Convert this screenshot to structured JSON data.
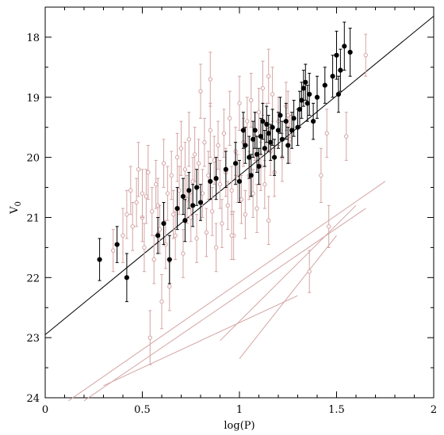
{
  "chart_data": {
    "type": "scatter",
    "xlabel": "log(P)",
    "ylabel": "V",
    "ylabel_subscript": "0",
    "xlim": [
      0,
      2
    ],
    "ylim": [
      24,
      17.5
    ],
    "y_inverted": true,
    "grid": false,
    "x_ticks": [
      "0",
      "0.5",
      "1",
      "1.5",
      "2"
    ],
    "y_ticks": [
      "18",
      "19",
      "20",
      "21",
      "22",
      "23",
      "24"
    ],
    "colors": {
      "filled": "#000000",
      "open": "#d4a5a5",
      "fit_line": "#000000",
      "aux_lines": "#d4a5a5"
    },
    "fit_line": {
      "x": [
        0,
        2
      ],
      "y": [
        22.95,
        17.65
      ]
    },
    "aux_lines": [
      {
        "x": [
          0.12,
          1.75
        ],
        "y": [
          24.05,
          20.4
        ]
      },
      {
        "x": [
          0.2,
          1.65
        ],
        "y": [
          24.05,
          20.85
        ]
      },
      {
        "x": [
          0.3,
          1.3
        ],
        "y": [
          23.8,
          22.3
        ]
      },
      {
        "x": [
          0.9,
          1.6
        ],
        "y": [
          23.05,
          20.8
        ]
      },
      {
        "x": [
          1.0,
          1.5
        ],
        "y": [
          23.35,
          21.3
        ]
      }
    ],
    "series": [
      {
        "marker": "filled",
        "points": [
          [
            0.28,
            21.7,
            0.35
          ],
          [
            0.37,
            21.45,
            0.3
          ],
          [
            0.42,
            22.0,
            0.4
          ],
          [
            0.58,
            21.3,
            0.3
          ],
          [
            0.61,
            21.1,
            0.35
          ],
          [
            0.64,
            21.7,
            0.4
          ],
          [
            0.68,
            20.85,
            0.35
          ],
          [
            0.71,
            20.65,
            0.3
          ],
          [
            0.72,
            21.05,
            0.35
          ],
          [
            0.74,
            20.55,
            0.3
          ],
          [
            0.76,
            20.8,
            0.35
          ],
          [
            0.78,
            20.5,
            0.3
          ],
          [
            0.8,
            20.75,
            0.3
          ],
          [
            0.85,
            20.4,
            0.3
          ],
          [
            0.88,
            20.35,
            0.35
          ],
          [
            0.93,
            20.2,
            0.3
          ],
          [
            0.98,
            20.1,
            0.35
          ],
          [
            1.0,
            20.4,
            0.35
          ],
          [
            1.02,
            19.55,
            0.3
          ],
          [
            1.03,
            19.8,
            0.3
          ],
          [
            1.05,
            20.0,
            0.35
          ],
          [
            1.06,
            20.3,
            0.35
          ],
          [
            1.07,
            19.7,
            0.3
          ],
          [
            1.08,
            19.55,
            0.3
          ],
          [
            1.09,
            19.95,
            0.3
          ],
          [
            1.1,
            20.15,
            0.3
          ],
          [
            1.11,
            19.65,
            0.3
          ],
          [
            1.12,
            19.4,
            0.3
          ],
          [
            1.13,
            19.85,
            0.3
          ],
          [
            1.14,
            19.45,
            0.3
          ],
          [
            1.15,
            19.6,
            0.3
          ],
          [
            1.16,
            19.75,
            0.3
          ],
          [
            1.17,
            19.5,
            0.3
          ],
          [
            1.18,
            20.0,
            0.3
          ],
          [
            1.2,
            19.55,
            0.3
          ],
          [
            1.21,
            19.3,
            0.3
          ],
          [
            1.22,
            19.7,
            0.3
          ],
          [
            1.24,
            19.4,
            0.3
          ],
          [
            1.25,
            19.8,
            0.3
          ],
          [
            1.27,
            19.55,
            0.3
          ],
          [
            1.28,
            19.35,
            0.3
          ],
          [
            1.3,
            19.5,
            0.3
          ],
          [
            1.31,
            19.2,
            0.3
          ],
          [
            1.32,
            19.05,
            0.3
          ],
          [
            1.33,
            18.85,
            0.3
          ],
          [
            1.34,
            18.75,
            0.3
          ],
          [
            1.35,
            19.1,
            0.3
          ],
          [
            1.36,
            18.95,
            0.35
          ],
          [
            1.38,
            19.4,
            0.3
          ],
          [
            1.4,
            19.0,
            0.35
          ],
          [
            1.44,
            18.8,
            0.3
          ],
          [
            1.48,
            18.65,
            0.35
          ],
          [
            1.5,
            18.3,
            0.4
          ],
          [
            1.51,
            18.95,
            0.3
          ],
          [
            1.52,
            18.55,
            0.35
          ],
          [
            1.54,
            18.15,
            0.4
          ],
          [
            1.57,
            18.25,
            0.4
          ]
        ]
      },
      {
        "marker": "open",
        "points": [
          [
            0.35,
            21.55,
            0.35
          ],
          [
            0.4,
            21.3,
            0.45
          ],
          [
            0.42,
            20.95,
            0.4
          ],
          [
            0.44,
            20.55,
            0.4
          ],
          [
            0.45,
            21.15,
            0.4
          ],
          [
            0.47,
            20.75,
            0.4
          ],
          [
            0.48,
            20.2,
            0.45
          ],
          [
            0.5,
            21.0,
            0.4
          ],
          [
            0.51,
            21.5,
            0.4
          ],
          [
            0.52,
            20.65,
            0.45
          ],
          [
            0.53,
            20.25,
            0.45
          ],
          [
            0.54,
            23.0,
            0.45
          ],
          [
            0.55,
            20.9,
            0.4
          ],
          [
            0.56,
            21.7,
            0.4
          ],
          [
            0.57,
            20.45,
            0.4
          ],
          [
            0.58,
            20.8,
            0.45
          ],
          [
            0.59,
            21.2,
            0.4
          ],
          [
            0.6,
            22.4,
            0.45
          ],
          [
            0.61,
            20.1,
            0.4
          ],
          [
            0.62,
            21.45,
            0.4
          ],
          [
            0.63,
            20.6,
            0.45
          ],
          [
            0.64,
            22.15,
            0.4
          ],
          [
            0.65,
            20.3,
            0.4
          ],
          [
            0.66,
            20.95,
            0.4
          ],
          [
            0.67,
            21.3,
            0.4
          ],
          [
            0.68,
            20.0,
            0.4
          ],
          [
            0.69,
            20.55,
            0.4
          ],
          [
            0.7,
            19.85,
            0.45
          ],
          [
            0.71,
            21.6,
            0.4
          ],
          [
            0.72,
            20.2,
            0.45
          ],
          [
            0.73,
            20.7,
            0.4
          ],
          [
            0.74,
            19.7,
            0.45
          ],
          [
            0.75,
            21.0,
            0.4
          ],
          [
            0.76,
            20.4,
            0.4
          ],
          [
            0.77,
            19.95,
            0.45
          ],
          [
            0.78,
            21.35,
            0.4
          ],
          [
            0.79,
            20.1,
            0.4
          ],
          [
            0.8,
            18.9,
            0.45
          ],
          [
            0.81,
            20.6,
            0.4
          ],
          [
            0.82,
            19.75,
            0.4
          ],
          [
            0.83,
            21.25,
            0.4
          ],
          [
            0.84,
            20.3,
            0.4
          ],
          [
            0.85,
            19.55,
            0.45
          ],
          [
            0.86,
            20.9,
            0.4
          ],
          [
            0.87,
            20.05,
            0.4
          ],
          [
            0.88,
            21.5,
            0.4
          ],
          [
            0.89,
            19.8,
            0.4
          ],
          [
            0.9,
            20.45,
            0.4
          ],
          [
            0.91,
            21.1,
            0.4
          ],
          [
            0.92,
            19.6,
            0.4
          ],
          [
            0.93,
            20.25,
            0.4
          ],
          [
            0.94,
            20.8,
            0.4
          ],
          [
            0.95,
            19.35,
            0.45
          ],
          [
            0.96,
            20.55,
            0.4
          ],
          [
            0.97,
            21.3,
            0.4
          ],
          [
            0.98,
            19.9,
            0.4
          ],
          [
            0.99,
            20.35,
            0.4
          ],
          [
            1.0,
            19.1,
            0.45
          ],
          [
            1.01,
            20.7,
            0.4
          ],
          [
            1.02,
            19.75,
            0.4
          ],
          [
            1.03,
            20.95,
            0.4
          ],
          [
            1.04,
            19.4,
            0.4
          ],
          [
            1.05,
            20.3,
            0.4
          ],
          [
            1.06,
            19.05,
            0.45
          ],
          [
            1.07,
            20.6,
            0.4
          ],
          [
            1.08,
            19.65,
            0.4
          ],
          [
            1.09,
            20.85,
            0.4
          ],
          [
            1.1,
            19.25,
            0.4
          ],
          [
            1.11,
            20.15,
            0.4
          ],
          [
            1.12,
            18.85,
            0.45
          ],
          [
            1.13,
            20.45,
            0.4
          ],
          [
            1.14,
            19.5,
            0.4
          ],
          [
            1.15,
            21.05,
            0.4
          ],
          [
            1.16,
            19.9,
            0.4
          ],
          [
            1.17,
            18.95,
            0.45
          ],
          [
            1.18,
            20.25,
            0.4
          ],
          [
            1.2,
            19.4,
            0.4
          ],
          [
            1.22,
            20.0,
            0.4
          ],
          [
            1.24,
            19.15,
            0.4
          ],
          [
            1.26,
            19.7,
            0.4
          ],
          [
            0.96,
            21.3,
            0.4
          ],
          [
            0.5,
            20.6,
            0.4
          ],
          [
            0.85,
            18.7,
            0.45
          ],
          [
            1.15,
            18.65,
            0.45
          ],
          [
            1.25,
            19.3,
            0.4
          ],
          [
            1.42,
            20.3,
            0.45
          ],
          [
            1.45,
            19.6,
            0.4
          ],
          [
            1.55,
            19.65,
            0.4
          ],
          [
            1.65,
            18.3,
            0.35
          ],
          [
            1.36,
            21.9,
            0.35
          ],
          [
            1.46,
            21.15,
            0.35
          ]
        ]
      }
    ]
  }
}
